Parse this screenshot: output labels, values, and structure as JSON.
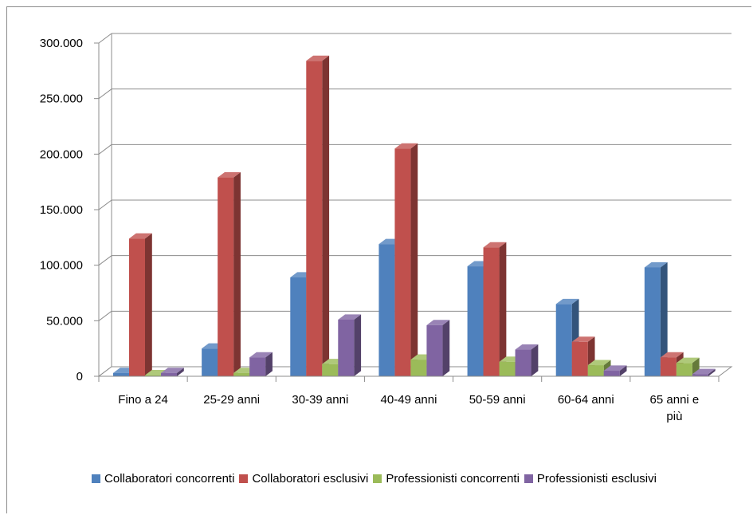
{
  "chart_data": {
    "type": "bar",
    "categories": [
      "Fino a 24",
      "25-29 anni",
      "30-39 anni",
      "40-49 anni",
      "50-59 anni",
      "60-64 anni",
      "65 anni e più"
    ],
    "category_lines": [
      [
        "Fino a 24"
      ],
      [
        "25-29 anni"
      ],
      [
        "30-39 anni"
      ],
      [
        "40-49 anni"
      ],
      [
        "50-59 anni"
      ],
      [
        "60-64 anni"
      ],
      [
        "65 anni e",
        "più"
      ]
    ],
    "series": [
      {
        "name": "Collaboratori concorrenti",
        "values": [
          3000,
          25000,
          89000,
          119000,
          99000,
          65000,
          98000
        ],
        "color": "#4f81bd"
      },
      {
        "name": "Collaboratori esclusivi",
        "values": [
          124000,
          179000,
          284000,
          205000,
          116000,
          31000,
          17000
        ],
        "color": "#c0504d"
      },
      {
        "name": "Professionisti concorrenti",
        "values": [
          1000,
          3000,
          11000,
          15000,
          13000,
          10000,
          12000
        ],
        "color": "#9bbb59"
      },
      {
        "name": "Professionisti esclusivi",
        "values": [
          3000,
          17000,
          51000,
          46000,
          24000,
          5000,
          2000
        ],
        "color": "#8064a2"
      }
    ],
    "ylim": [
      0,
      300000
    ],
    "yticks": [
      0,
      50000,
      100000,
      150000,
      200000,
      250000,
      300000
    ],
    "ytick_labels": [
      "0",
      "50.000",
      "100.000",
      "150.000",
      "200.000",
      "250.000",
      "300.000"
    ],
    "legend_position": "bottom",
    "grid": true,
    "style": "3d-clustered-column"
  }
}
